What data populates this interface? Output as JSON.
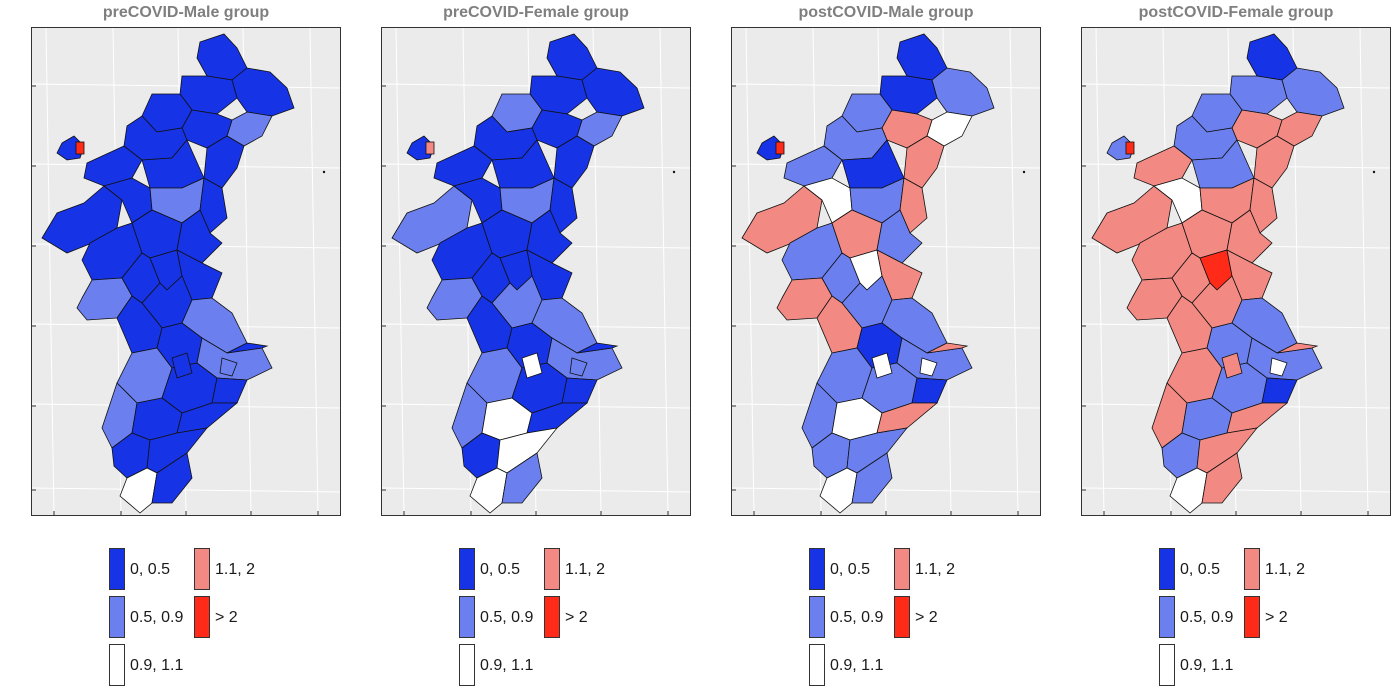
{
  "panels": [
    {
      "title": "preCOVID-Male group",
      "region_colors": [
        "c1",
        "c1",
        "c1",
        "c1",
        "c2",
        "c1",
        "c1",
        "c1",
        "c1",
        "c1",
        "c1",
        "c1",
        "c2",
        "c1",
        "c1",
        "c1",
        "c1",
        "c2",
        "c1",
        "c1",
        "c1",
        "c1",
        "c2",
        "c1",
        "c1",
        "c2",
        "c1",
        "c2",
        "c1",
        "c1",
        "c2",
        "c1",
        "c1",
        "c1",
        "c1",
        "c3",
        "c1",
        "c1",
        "c1",
        "c2"
      ],
      "hotspot": "c5"
    },
    {
      "title": "preCOVID-Female group",
      "region_colors": [
        "c1",
        "c1",
        "c1",
        "c2",
        "c2",
        "c1",
        "c1",
        "c1",
        "c1",
        "c1",
        "c2",
        "c1",
        "c2",
        "c1",
        "c1",
        "c1",
        "c1",
        "c2",
        "c1",
        "c1",
        "c1",
        "c2",
        "c2",
        "c1",
        "c1",
        "c2",
        "c1",
        "c2",
        "c1",
        "c1",
        "c2",
        "c3",
        "c1",
        "c1",
        "c3",
        "c3",
        "c2",
        "c1",
        "c3",
        "c2"
      ],
      "hotspot": "c4"
    },
    {
      "title": "postCOVID-Male group",
      "region_colors": [
        "c1",
        "c2",
        "c1",
        "c2",
        "c3",
        "c4",
        "c2",
        "c4",
        "c2",
        "c1",
        "c4",
        "c3",
        "c2",
        "c4",
        "c2",
        "c4",
        "c2",
        "c4",
        "c2",
        "c3",
        "c4",
        "c2",
        "c2",
        "c4",
        "c1",
        "c2",
        "c4",
        "c2",
        "c2",
        "c1",
        "c2",
        "c3",
        "c4",
        "c2",
        "c2",
        "c3",
        "c2",
        "c1",
        "c3",
        "c3"
      ],
      "hotspot": "c5"
    },
    {
      "title": "postCOVID-Female group",
      "region_colors": [
        "c1",
        "c2",
        "c2",
        "c2",
        "c4",
        "c4",
        "c2",
        "c4",
        "c4",
        "c2",
        "c4",
        "c3",
        "c4",
        "c4",
        "c4",
        "c4",
        "c4",
        "c4",
        "c4",
        "c5",
        "c4",
        "c4",
        "c2",
        "c4",
        "c2",
        "c2",
        "c4",
        "c4",
        "c2",
        "c1",
        "c4",
        "c2",
        "c4",
        "c2",
        "c4",
        "c3",
        "c4",
        "c2",
        "c4",
        "c3"
      ],
      "hotspot": "c5"
    }
  ],
  "legend": {
    "items": [
      {
        "key": "c1",
        "label": "0, 0.5",
        "color": "#1733e6"
      },
      {
        "key": "c2",
        "label": "0.5, 0.9",
        "color": "#6b80ee"
      },
      {
        "key": "c3",
        "label": "0.9, 1.1",
        "color": "#ffffff"
      },
      {
        "key": "c4",
        "label": "1.1, 2",
        "color": "#f28983"
      },
      {
        "key": "c5",
        "label": "> 2",
        "color": "#ff2a17"
      }
    ]
  },
  "colors": {
    "panel_background": "#ebebeb",
    "grid": "#ffffff",
    "title_gray": "#7f7f7f",
    "border": "#1a1a1a"
  }
}
